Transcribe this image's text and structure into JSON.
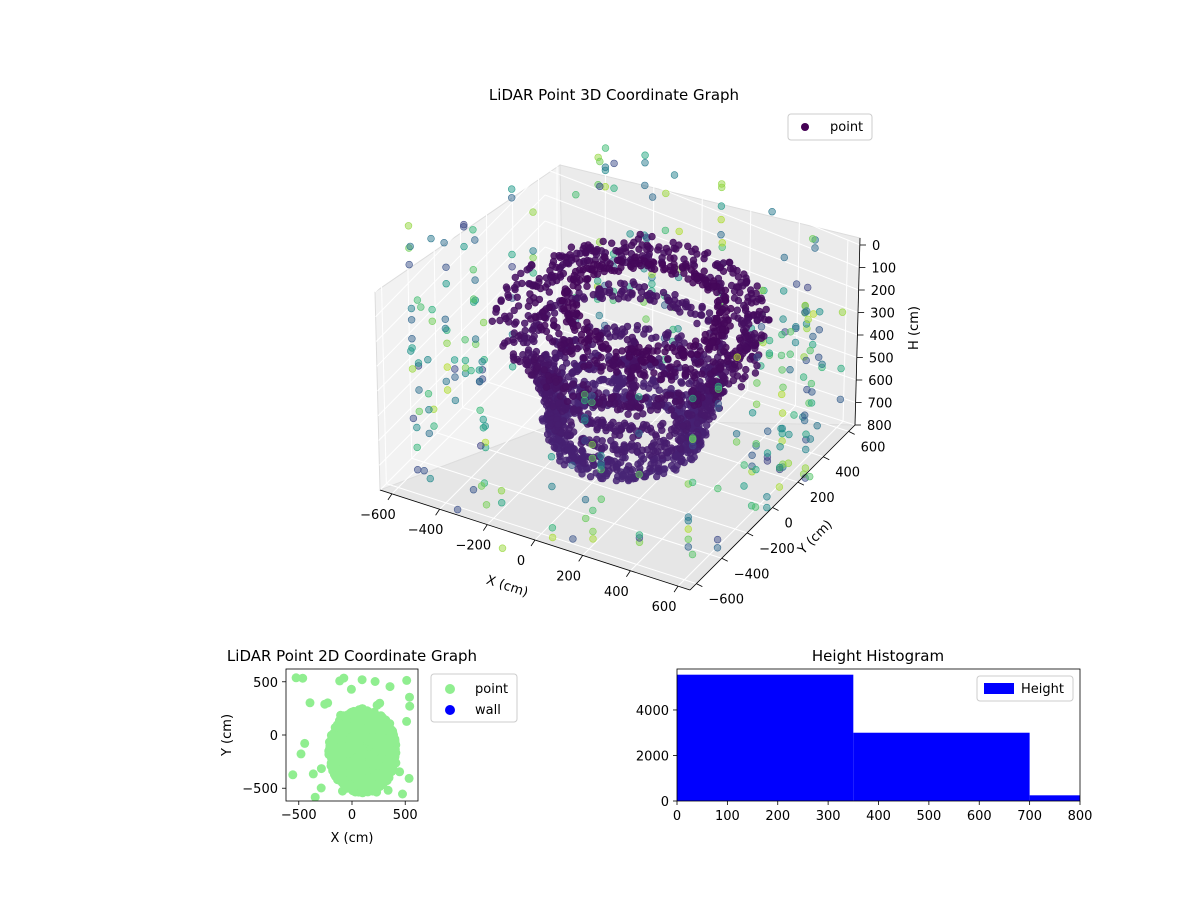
{
  "charts": {
    "scatter3d": {
      "type": "scatter",
      "title": "LiDAR Point 3D Coordinate Graph",
      "xlabel": "X (cm)",
      "ylabel": "Y (cm)",
      "zlabel": "H (cm)",
      "x_ticks": [
        "−600",
        "−400",
        "−200",
        "0",
        "200",
        "400",
        "600"
      ],
      "y_ticks": [
        "−600",
        "−400",
        "−200",
        "0",
        "200",
        "400",
        "600"
      ],
      "z_ticks": [
        "0",
        "100",
        "200",
        "300",
        "400",
        "500",
        "600",
        "700",
        "800"
      ],
      "xlim": [
        -650,
        650
      ],
      "ylim": [
        -650,
        650
      ],
      "zlim": [
        0,
        800
      ],
      "z_inverted": true,
      "colormap": "viridis",
      "grid": true,
      "legend": {
        "placement": "upper-right",
        "entries": [
          {
            "label": "point",
            "color": "#440154"
          }
        ]
      },
      "series": [
        {
          "name": "point",
          "description_rings": [
            {
              "h": 120,
              "r": 300,
              "cx": 120,
              "cy": 0
            },
            {
              "h": 160,
              "r": 420,
              "cx": 100,
              "cy": 50
            },
            {
              "h": 240,
              "r": 480,
              "cx": 50,
              "cy": 0
            },
            {
              "h": 300,
              "r": 380,
              "cx": 60,
              "cy": -30
            },
            {
              "h": 420,
              "r": 330,
              "cx": 80,
              "cy": -50
            },
            {
              "h": 520,
              "r": 310,
              "cx": 70,
              "cy": -60
            },
            {
              "h": 600,
              "r": 290,
              "cx": 60,
              "cy": -60
            },
            {
              "h": 660,
              "r": 270,
              "cx": 60,
              "cy": -60
            }
          ]
        }
      ]
    },
    "scatter2d": {
      "type": "scatter",
      "title": "LiDAR Point 2D Coordinate Graph",
      "xlabel": "X (cm)",
      "ylabel": "Y (cm)",
      "x_ticks": [
        "−500",
        "0",
        "500"
      ],
      "y_ticks": [
        "500",
        "0",
        "−500"
      ],
      "xlim": [
        -620,
        620
      ],
      "ylim": [
        -620,
        620
      ],
      "legend": {
        "placement": "outside-right",
        "entries": [
          {
            "label": "point",
            "color": "#90ee90"
          },
          {
            "label": "wall",
            "color": "#0000ff"
          }
        ]
      },
      "series": [
        {
          "name": "point",
          "color": "#90ee90",
          "cluster_center": [
            100,
            -150
          ],
          "cluster_radius": 320
        },
        {
          "name": "wall",
          "color": "#0000ff",
          "points": []
        }
      ]
    },
    "histogram": {
      "type": "bar",
      "title": "Height Histogram",
      "x_ticks": [
        "0",
        "100",
        "200",
        "300",
        "400",
        "500",
        "600",
        "700",
        "800"
      ],
      "y_ticks": [
        "0",
        "2000",
        "4000"
      ],
      "xlim": [
        0,
        800
      ],
      "ylim": [
        0,
        5800
      ],
      "bins": [
        {
          "start": 0,
          "end": 350,
          "count": 5550
        },
        {
          "start": 350,
          "end": 700,
          "count": 3000
        },
        {
          "start": 700,
          "end": 800,
          "count": 250
        }
      ],
      "color": "#0000ff",
      "legend": {
        "placement": "upper-right",
        "entries": [
          {
            "label": "Height",
            "color": "#0000ff"
          }
        ]
      }
    }
  }
}
